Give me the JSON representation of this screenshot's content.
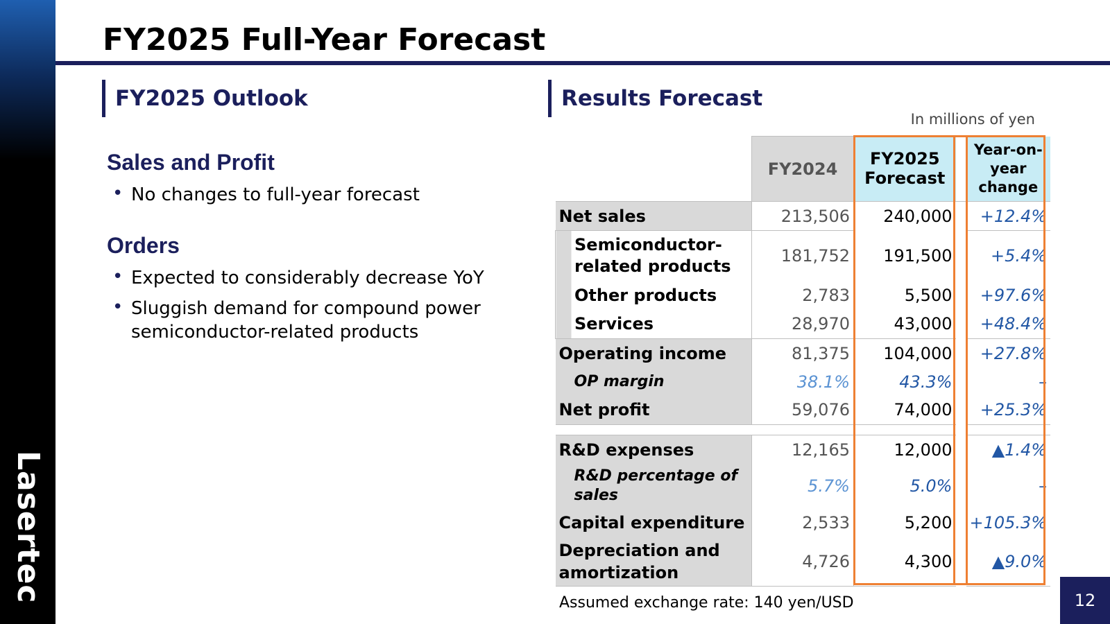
{
  "brand": {
    "logo_text": "Lasertec"
  },
  "page": {
    "title": "FY2025 Full-Year Forecast",
    "page_number": "12"
  },
  "left": {
    "section_title": "FY2025 Outlook",
    "groups": [
      {
        "heading": "Sales and Profit",
        "bullets": [
          "No changes to full-year forecast"
        ]
      },
      {
        "heading": "Orders",
        "bullets": [
          "Expected to considerably decrease YoY",
          "Sluggish demand for compound power semiconductor-related products"
        ]
      }
    ]
  },
  "right": {
    "section_title": "Results Forecast",
    "units_note": "In millions of yen",
    "columns": {
      "fy2024": "FY2024",
      "fy2025": "FY2025 Forecast",
      "yoy": "Year-on-year change"
    },
    "rows": [
      {
        "label": "Net sales",
        "fy2024": "213,506",
        "fy2025": "240,000",
        "yoy": "+12.4%"
      },
      {
        "label": "Semiconductor-related products",
        "fy2024": "181,752",
        "fy2025": "191,500",
        "yoy": "+5.4%"
      },
      {
        "label": "Other products",
        "fy2024": "2,783",
        "fy2025": "5,500",
        "yoy": "+97.6%"
      },
      {
        "label": "Services",
        "fy2024": "28,970",
        "fy2025": "43,000",
        "yoy": "+48.4%"
      },
      {
        "label": "Operating income",
        "fy2024": "81,375",
        "fy2025": "104,000",
        "yoy": "+27.8%"
      },
      {
        "label": "OP margin",
        "fy2024": "38.1%",
        "fy2025": "43.3%",
        "yoy": "–"
      },
      {
        "label": "Net profit",
        "fy2024": "59,076",
        "fy2025": "74,000",
        "yoy": "+25.3%"
      },
      {
        "label": "R&D expenses",
        "fy2024": "12,165",
        "fy2025": "12,000",
        "yoy": "▲1.4%"
      },
      {
        "label": "R&D percentage of sales",
        "fy2024": "5.7%",
        "fy2025": "5.0%",
        "yoy": "–"
      },
      {
        "label": "Capital expenditure",
        "fy2024": "2,533",
        "fy2025": "5,200",
        "yoy": "+105.3%"
      },
      {
        "label": "Depreciation and amortization",
        "fy2024": "4,726",
        "fy2025": "4,300",
        "yoy": "▲9.0%"
      }
    ],
    "footnote": "Assumed exchange rate: 140 yen/USD"
  },
  "colors": {
    "navy": "#1b1f5c",
    "orange": "#ee8033",
    "light_blue": "#c8ecf5",
    "gray": "#d9d9d9",
    "blue_text": "#2257a5"
  }
}
